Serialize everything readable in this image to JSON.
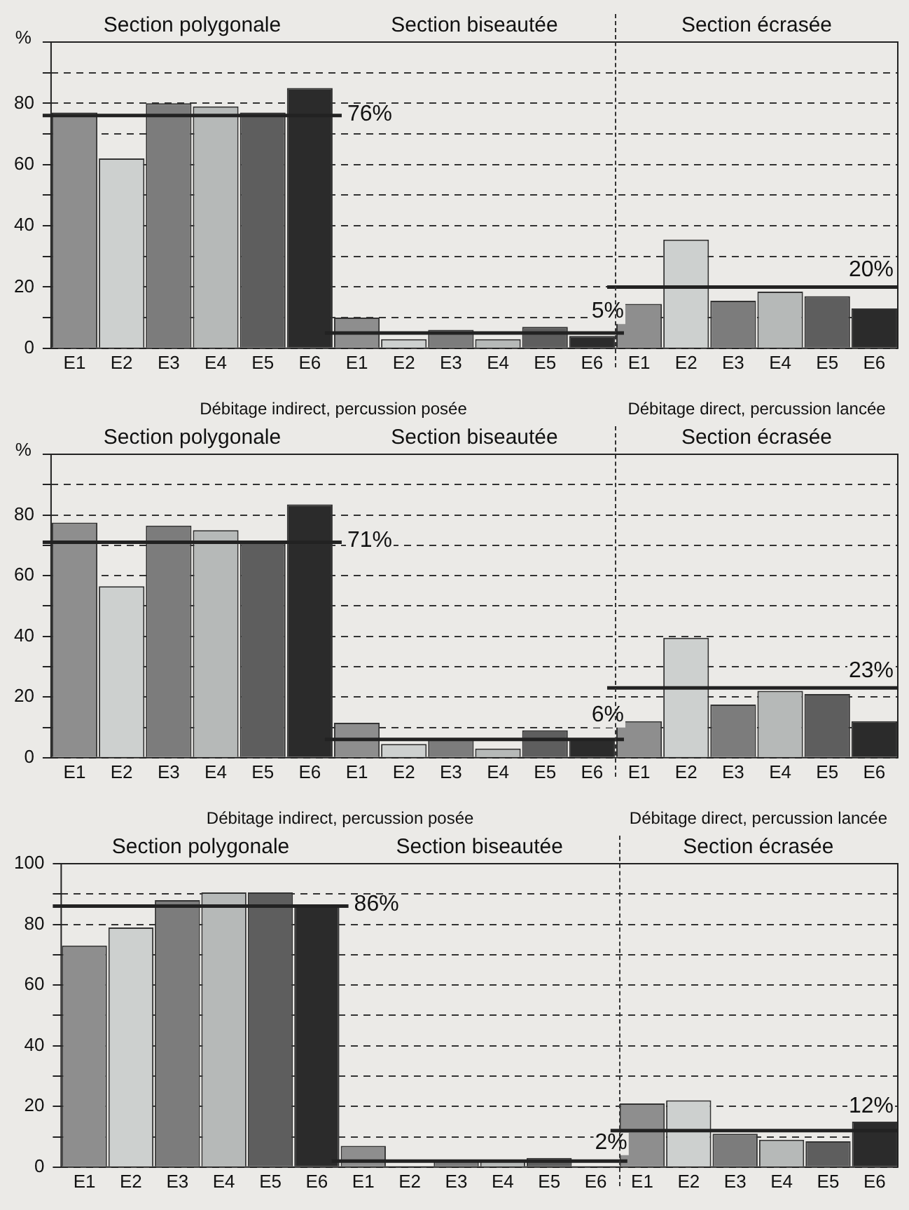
{
  "chart_data": [
    {
      "type": "bar",
      "ylabel": "%",
      "annotations": [
        "Section polygonale",
        "Section biseautée",
        "Section écrasée"
      ],
      "categories": [
        "E1",
        "E2",
        "E3",
        "E4",
        "E5",
        "E6",
        "E1",
        "E2",
        "E3",
        "E4",
        "E5",
        "E6",
        "E1",
        "E2",
        "E3",
        "E4",
        "E5",
        "E6"
      ],
      "values": [
        77,
        62,
        80,
        79,
        77,
        85,
        10,
        3,
        6,
        3,
        7,
        4,
        14.5,
        35.5,
        15.5,
        18.5,
        17,
        13
      ],
      "colors": [
        "#8e8e8e",
        "#cdd0cf",
        "#7c7c7c",
        "#b6b9b8",
        "#5e5e5e",
        "#2b2b2b",
        "#8e8e8e",
        "#cdd0cf",
        "#7c7c7c",
        "#b6b9b8",
        "#5e5e5e",
        "#2b2b2b",
        "#8e8e8e",
        "#cdd0cf",
        "#7c7c7c",
        "#b6b9b8",
        "#5e5e5e",
        "#2b2b2b"
      ],
      "ylim": [
        0,
        100
      ],
      "yticks": [
        0,
        {
          "value": 10,
          "label": null
        },
        20,
        {
          "value": 30,
          "label": null
        },
        40,
        {
          "value": 50,
          "label": null
        },
        60,
        {
          "value": 70,
          "label": null
        },
        80,
        {
          "value": 90,
          "label": null
        },
        {
          "value": 100,
          "label": null
        }
      ],
      "grid": "y",
      "ref_lines": [
        {
          "axis": "y",
          "value": 76,
          "label": "76%"
        },
        {
          "axis": "y",
          "value": 5,
          "label": "5%"
        },
        {
          "axis": "y",
          "value": 20,
          "label": "20%"
        }
      ]
    },
    {
      "type": "bar",
      "ylabel": "%",
      "annotations": [
        "Débitage indirect, percussion posée",
        "Débitage direct, percussion lancée",
        "Section polygonale",
        "Section biseautée",
        "Section écrasée"
      ],
      "categories": [
        "E1",
        "E2",
        "E3",
        "E4",
        "E5",
        "E6",
        "E1",
        "E2",
        "E3",
        "E4",
        "E5",
        "E6",
        "E1",
        "E2",
        "E3",
        "E4",
        "E5",
        "E6"
      ],
      "values": [
        77.5,
        56.5,
        76.5,
        75,
        71.5,
        83.5,
        11.5,
        4.5,
        6,
        3,
        9,
        6,
        12,
        39.5,
        17.5,
        22,
        21,
        12
      ],
      "colors": [
        "#8e8e8e",
        "#cdd0cf",
        "#7c7c7c",
        "#b6b9b8",
        "#5e5e5e",
        "#2b2b2b",
        "#8e8e8e",
        "#cdd0cf",
        "#7c7c7c",
        "#b6b9b8",
        "#5e5e5e",
        "#2b2b2b",
        "#8e8e8e",
        "#cdd0cf",
        "#7c7c7c",
        "#b6b9b8",
        "#5e5e5e",
        "#2b2b2b"
      ],
      "ylim": [
        0,
        100
      ],
      "yticks": [
        0,
        {
          "value": 10,
          "label": null
        },
        20,
        {
          "value": 30,
          "label": null
        },
        40,
        {
          "value": 50,
          "label": null
        },
        60,
        {
          "value": 70,
          "label": null
        },
        80,
        {
          "value": 90,
          "label": null
        },
        {
          "value": 100,
          "label": null
        }
      ],
      "grid": "y",
      "ref_lines": [
        {
          "axis": "y",
          "value": 71,
          "label": "71%"
        },
        {
          "axis": "y",
          "value": 6,
          "label": "6%"
        },
        {
          "axis": "y",
          "value": 23,
          "label": "23%"
        }
      ]
    },
    {
      "type": "bar",
      "annotations": [
        "Débitage indirect, percussion posée",
        "Débitage direct, percussion lancée",
        "Section polygonale",
        "Section biseautée",
        "Section écrasée"
      ],
      "categories": [
        "E1",
        "E2",
        "E3",
        "E4",
        "E5",
        "E6",
        "E1",
        "E2",
        "E3",
        "E4",
        "E5",
        "E6",
        "E1",
        "E2",
        "E3",
        "E4",
        "E5",
        "E6"
      ],
      "values": [
        73,
        79,
        88,
        90.5,
        90.5,
        86,
        7,
        0,
        2.5,
        2,
        3,
        0,
        21,
        22,
        11,
        9,
        8.5,
        15
      ],
      "colors": [
        "#8e8e8e",
        "#cdd0cf",
        "#7c7c7c",
        "#b6b9b8",
        "#5e5e5e",
        "#2b2b2b",
        "#8e8e8e",
        "#cdd0cf",
        "#7c7c7c",
        "#b6b9b8",
        "#5e5e5e",
        "#2b2b2b",
        "#8e8e8e",
        "#cdd0cf",
        "#7c7c7c",
        "#b6b9b8",
        "#5e5e5e",
        "#2b2b2b"
      ],
      "ylim": [
        0,
        100
      ],
      "yticks": [
        0,
        {
          "value": 10,
          "label": null
        },
        20,
        {
          "value": 30,
          "label": null
        },
        40,
        {
          "value": 50,
          "label": null
        },
        60,
        {
          "value": 70,
          "label": null
        },
        80,
        {
          "value": 90,
          "label": null
        },
        100
      ],
      "grid": "y",
      "ref_lines": [
        {
          "axis": "y",
          "value": 86,
          "label": "86%"
        },
        {
          "axis": "y",
          "value": 2,
          "label": "2%"
        },
        {
          "axis": "y",
          "value": 12,
          "label": "12%"
        }
      ]
    }
  ]
}
